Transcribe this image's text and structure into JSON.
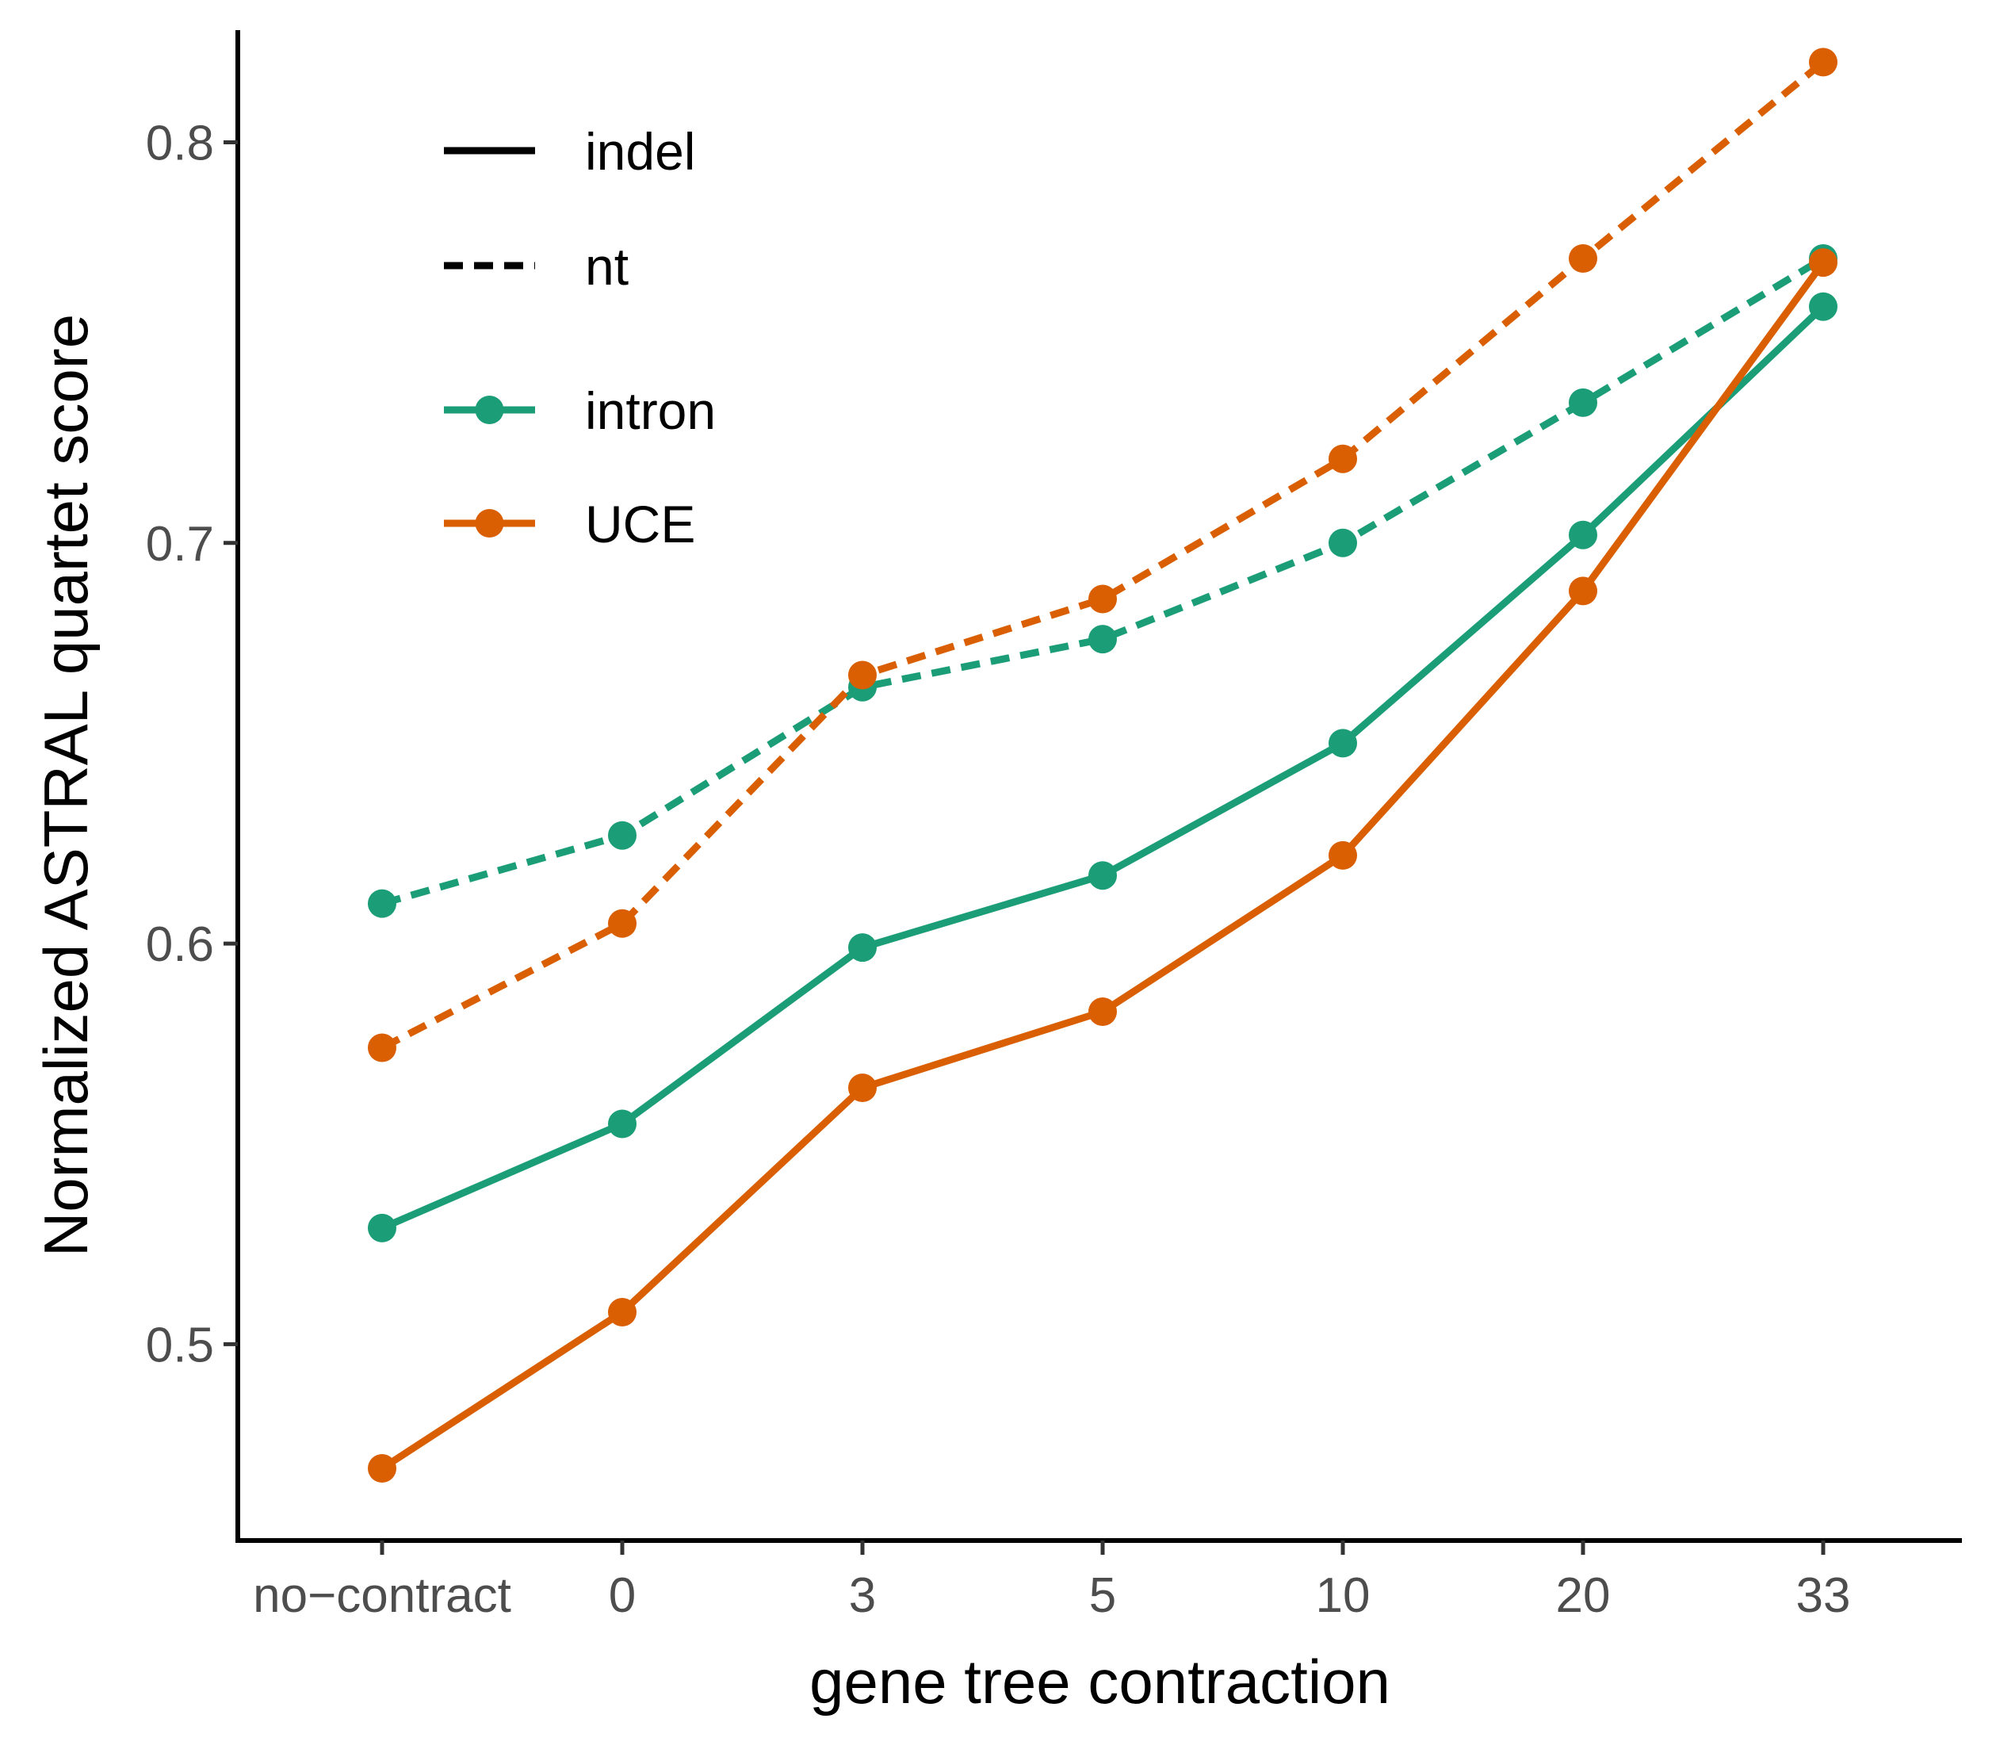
{
  "chart_data": {
    "type": "line",
    "title": "",
    "xlabel": "gene tree contraction",
    "ylabel": "Normalized ASTRAL quartet score",
    "categories": [
      "no−contract",
      "0",
      "3",
      "5",
      "10",
      "20",
      "33"
    ],
    "ylim": [
      0.451,
      0.828
    ],
    "yticks": [
      0.5,
      0.6,
      0.7,
      0.8
    ],
    "ytick_labels": [
      "0.5",
      "0.6",
      "0.7",
      "0.8"
    ],
    "grid": false,
    "legend_position": "top-left",
    "legend": {
      "linetypes": [
        {
          "label": "indel",
          "style": "solid"
        },
        {
          "label": "nt",
          "style": "dashed"
        }
      ],
      "colors": [
        {
          "label": "intron",
          "color": "#1b9e77"
        },
        {
          "label": "UCE",
          "color": "#d95f02"
        }
      ]
    },
    "series": [
      {
        "name": "intron indel",
        "group": "intron",
        "linetype": "indel",
        "color": "#1b9e77",
        "dashed": false,
        "values": [
          0.529,
          0.555,
          0.599,
          0.617,
          0.65,
          0.702,
          0.759
        ]
      },
      {
        "name": "UCE indel",
        "group": "UCE",
        "linetype": "indel",
        "color": "#d95f02",
        "dashed": false,
        "values": [
          0.469,
          0.508,
          0.564,
          0.583,
          0.622,
          0.688,
          0.77
        ]
      },
      {
        "name": "intron nt",
        "group": "intron",
        "linetype": "nt",
        "color": "#1b9e77",
        "dashed": true,
        "values": [
          0.61,
          0.627,
          0.664,
          0.676,
          0.7,
          0.735,
          0.771
        ]
      },
      {
        "name": "UCE nt",
        "group": "UCE",
        "linetype": "nt",
        "color": "#d95f02",
        "dashed": true,
        "values": [
          0.574,
          0.605,
          0.667,
          0.686,
          0.721,
          0.771,
          0.82
        ]
      }
    ]
  }
}
